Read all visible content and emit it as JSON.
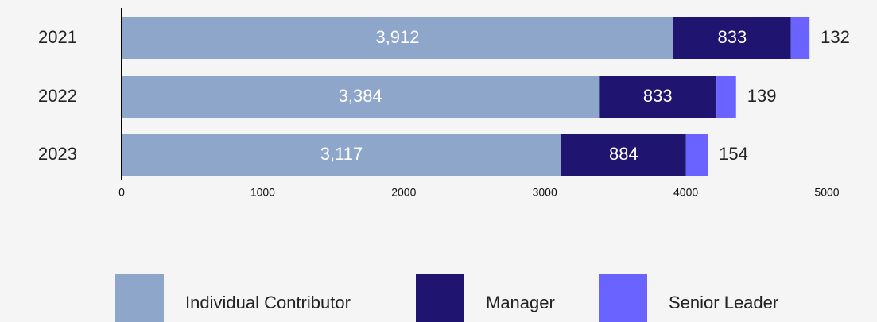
{
  "chart_data": {
    "type": "stacked-bar-horizontal",
    "categories": [
      "2021",
      "2022",
      "2023"
    ],
    "series": [
      {
        "name": "Individual Contributor",
        "color": "#8fa6cb",
        "values": [
          3912,
          3384,
          3117
        ],
        "value_labels": [
          "3,912",
          "3,384",
          "3,117"
        ]
      },
      {
        "name": "Manager",
        "color": "#1f1570",
        "values": [
          833,
          833,
          884
        ]
      },
      {
        "name": "Senior Leader",
        "color": "#6a63ff",
        "values": [
          132,
          139,
          154
        ]
      }
    ],
    "xlim": [
      0,
      5000
    ],
    "xticks": [
      0,
      1000,
      2000,
      3000,
      4000,
      5000
    ]
  }
}
